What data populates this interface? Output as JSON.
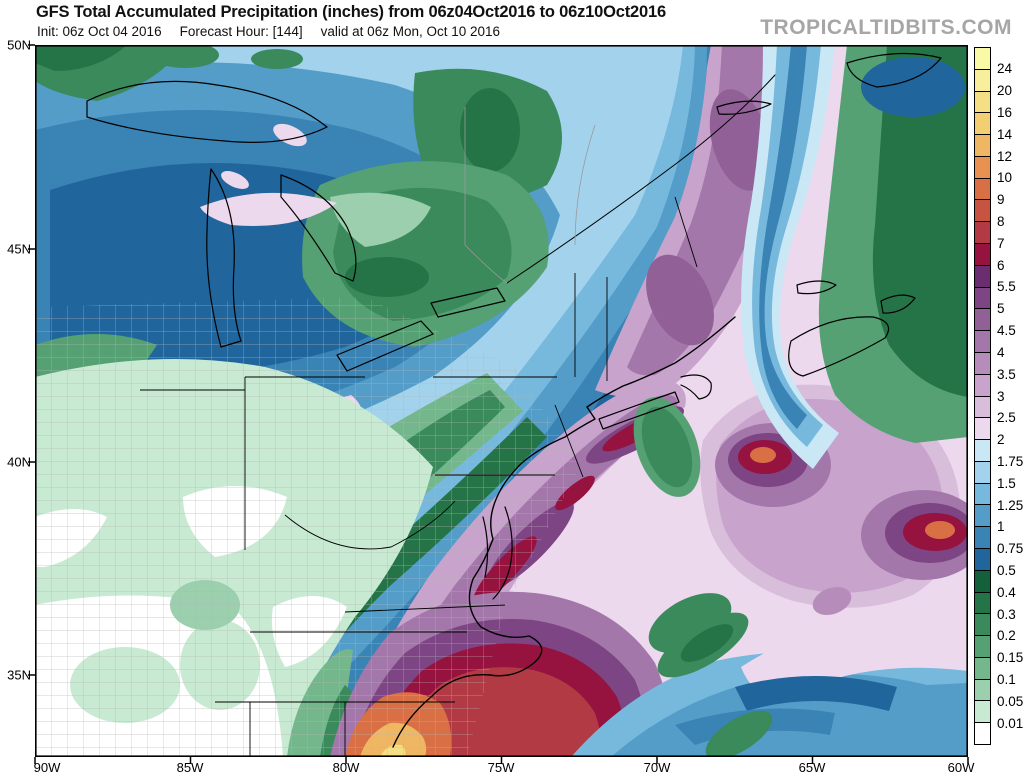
{
  "header": {
    "title": "GFS Total Accumulated Precipitation (inches) from 06z04Oct2016 to 06z10Oct2016",
    "init": "Init: 06z Oct 04 2016",
    "forecast_hour": "Forecast Hour: [144]",
    "valid": "valid at 06z Mon, Oct 10 2016",
    "watermark": "TROPICALTIDBITS.COM"
  },
  "axes": {
    "lat": [
      "50N",
      "45N",
      "40N",
      "35N"
    ],
    "lon": [
      "90W",
      "85W",
      "80W",
      "75W",
      "70W",
      "65W",
      "60W"
    ]
  },
  "colorbar": {
    "labels": [
      "24",
      "20",
      "16",
      "14",
      "12",
      "10",
      "9",
      "8",
      "7",
      "6",
      "5.5",
      "5",
      "4.5",
      "4",
      "3.5",
      "3",
      "2.5",
      "2",
      "1.75",
      "1.5",
      "1.25",
      "1",
      "0.75",
      "0.5",
      "0.4",
      "0.3",
      "0.2",
      "0.15",
      "0.1",
      "0.05",
      "0.01"
    ],
    "colors": [
      "#f9f9a6",
      "#f7ef9b",
      "#f5df85",
      "#f2cf72",
      "#efb763",
      "#e89150",
      "#d96f45",
      "#c65440",
      "#b13a44",
      "#96123f",
      "#6a2d70",
      "#7d4583",
      "#906097",
      "#a377aa",
      "#b68cbb",
      "#c8a4cd",
      "#d9bedc",
      "#edd9ee",
      "#c9e7f5",
      "#a3d3ec",
      "#77b8dd",
      "#549dc8",
      "#3a83b5",
      "#20659c",
      "#14603a",
      "#257448",
      "#3a8a5c",
      "#55a173",
      "#75b78d",
      "#9ccfae",
      "#c9ead2",
      "#ffffff"
    ]
  }
}
